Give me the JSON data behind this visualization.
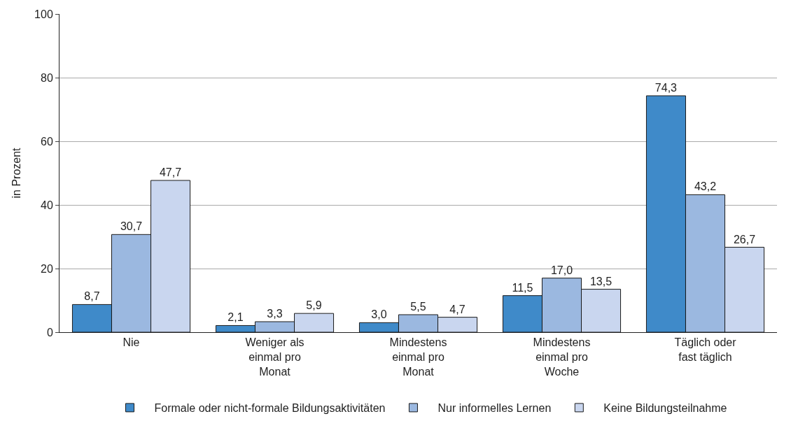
{
  "chart_data": {
    "type": "bar",
    "ylabel": "in Prozent",
    "ylim": [
      0,
      100
    ],
    "yticks": [
      0,
      20,
      40,
      60,
      80,
      100
    ],
    "grid": "y",
    "legend": "bottom",
    "categories": [
      "Nie",
      "Weniger als\neinmal pro\nMonat",
      "Mindestens\neinmal pro\nMonat",
      "Mindestens\neinmal pro\nWoche",
      "Täglich oder\nfast täglich"
    ],
    "series": [
      {
        "name": "Formale oder nicht-formale Bildungsaktivitäten",
        "color": "#3f8ac9",
        "values": [
          8.7,
          2.1,
          3.0,
          11.5,
          74.3
        ],
        "value_labels": [
          "8,7",
          "2,1",
          "3,0",
          "11,5",
          "74,3"
        ]
      },
      {
        "name": "Nur informelles Lernen",
        "color": "#9bb8e0",
        "values": [
          30.7,
          3.3,
          5.5,
          17.0,
          43.2
        ],
        "value_labels": [
          "30,7",
          "3,3",
          "5,5",
          "17,0",
          "43,2"
        ]
      },
      {
        "name": "Keine Bildungsteilnahme",
        "color": "#c9d6ef",
        "values": [
          47.7,
          5.9,
          4.7,
          13.5,
          26.7
        ],
        "value_labels": [
          "47,7",
          "5,9",
          "4,7",
          "13,5",
          "26,7"
        ]
      }
    ]
  }
}
